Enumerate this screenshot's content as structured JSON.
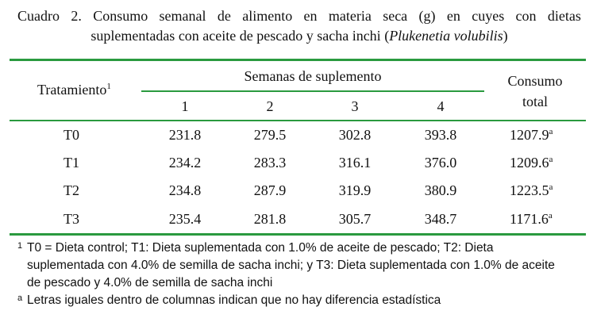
{
  "caption": {
    "line1_words": [
      "Cuadro",
      "2.",
      "Consumo",
      "semanal",
      "de",
      "alimento",
      "en",
      "materia",
      "seca",
      "(g)",
      "en",
      "cuyes",
      "con",
      "dietas"
    ],
    "line2_prefix": "suplementadas con aceite de pescado y sacha inchi (",
    "line2_italic": "Plukenetia volubilis",
    "line2_suffix": ")"
  },
  "table": {
    "header_treatment": "Tratamiento",
    "header_treatment_sup": "1",
    "header_weeks": "Semanas de suplemento",
    "header_total_line1": "Consumo",
    "header_total_line2": "total",
    "week_labels": [
      "1",
      "2",
      "3",
      "4"
    ],
    "rows": [
      {
        "treatment": "T0",
        "w1": "231.8",
        "w2": "279.5",
        "w3": "302.8",
        "w4": "393.8",
        "total": "1207.9",
        "sup": "a"
      },
      {
        "treatment": "T1",
        "w1": "234.2",
        "w2": "283.3",
        "w3": "316.1",
        "w4": "376.0",
        "total": "1209.6",
        "sup": "a"
      },
      {
        "treatment": "T2",
        "w1": "234.8",
        "w2": "287.9",
        "w3": "319.9",
        "w4": "380.9",
        "total": "1223.5",
        "sup": "a"
      },
      {
        "treatment": "T3",
        "w1": "235.4",
        "w2": "281.8",
        "w3": "305.7",
        "w4": "348.7",
        "total": "1171.6",
        "sup": "a"
      }
    ]
  },
  "notes": {
    "note1_mark": "1",
    "note1_line1": "T0 = Dieta control; T1: Dieta suplementada con 1.0% de aceite de pescado; T2: Dieta",
    "note1_line2": "suplementada con 4.0% de semilla de sacha inchi; y T3: Dieta suplementada con 1.0% de aceite",
    "note1_line3": "de pescado y 4.0% de semilla de sacha inchi",
    "note2_mark": "a",
    "note2_text": "Letras iguales dentro de columnas indican que no hay diferencia estadística"
  },
  "colors": {
    "rule": "#2a9a3f",
    "text": "#111111"
  }
}
